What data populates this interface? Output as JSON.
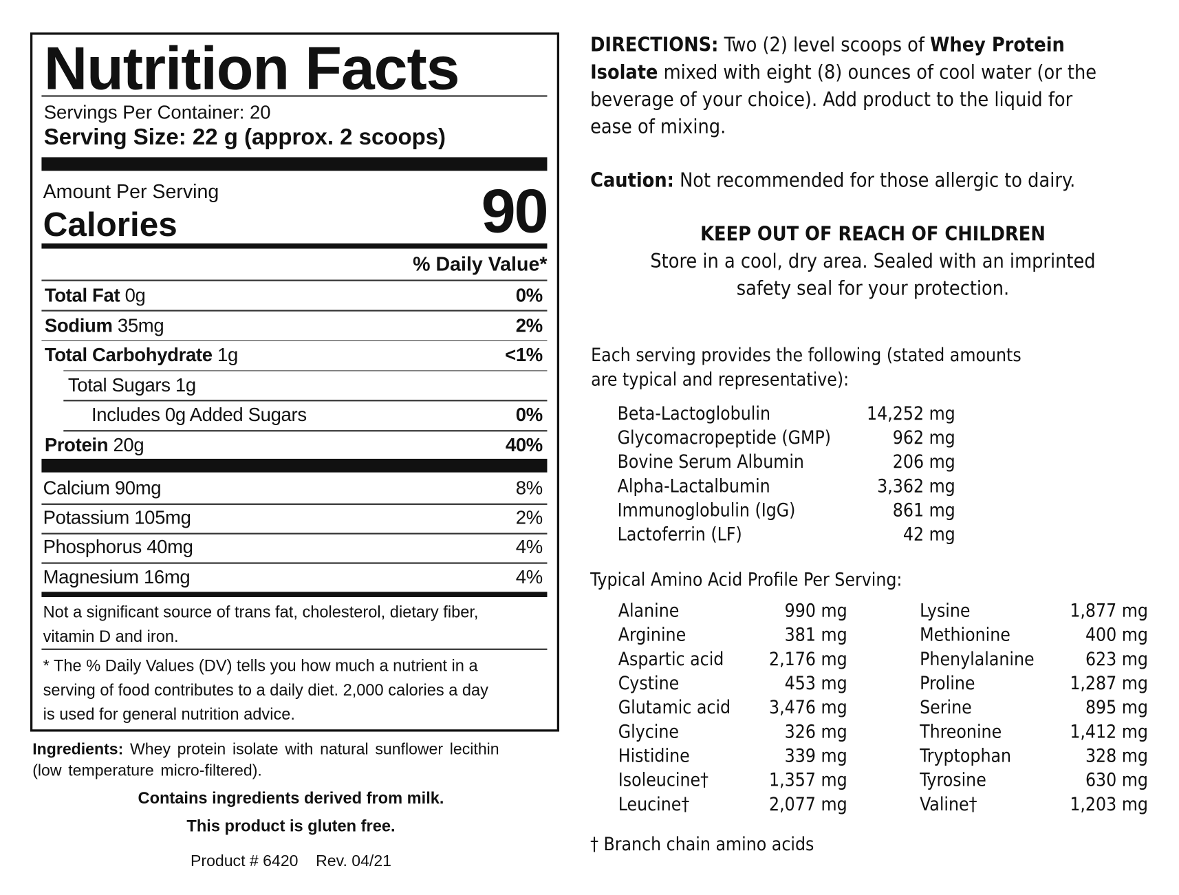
{
  "label": {
    "title": "Nutrition Facts",
    "servings_per_container": "Servings Per Container: 20",
    "serving_size": "Serving Size: 22 g (approx. 2 scoops)",
    "amount_per_serving": "Amount Per Serving",
    "calories_label": "Calories",
    "calories_value": "90",
    "daily_value_header": "% Daily Value*",
    "nutrients": [
      {
        "name": "Total Fat",
        "amount": "0g",
        "dv": "0%",
        "bold": true,
        "indent": 0
      },
      {
        "name": "Sodium",
        "amount": "35mg",
        "dv": "2%",
        "bold": true,
        "indent": 0
      },
      {
        "name": "Total Carbohydrate",
        "amount": "1g",
        "dv": "<1%",
        "bold": true,
        "indent": 0
      },
      {
        "name": "Total Sugars 1g",
        "amount": "",
        "dv": "",
        "bold": false,
        "indent": 1
      },
      {
        "name": "Includes 0g Added Sugars",
        "amount": "",
        "dv": "0%",
        "bold": false,
        "indent": 2
      },
      {
        "name": "Protein",
        "amount": "20g",
        "dv": "40%",
        "bold": true,
        "indent": 0
      }
    ],
    "minerals": [
      {
        "name": "Calcium 90mg",
        "dv": "8%"
      },
      {
        "name": "Potassium 105mg",
        "dv": "2%"
      },
      {
        "name": "Phosphorus 40mg",
        "dv": "4%"
      },
      {
        "name": "Magnesium 16mg",
        "dv": "4%"
      }
    ],
    "not_significant": [
      "Not a significant source of trans fat, cholesterol, dietary fiber,",
      "vitamin D and iron."
    ],
    "footnote": [
      "* The % Daily Values (DV) tells you how much a nutrient in a",
      "serving of food contributes to a daily diet. 2,000 calories a day",
      "is used for general nutrition advice."
    ]
  },
  "ingredients": {
    "label": "Ingredients:",
    "text1": " Whey protein isolate with natural sunflower lecithin",
    "text2": "(low temperature micro-filtered).",
    "allergen": "Contains ingredients derived from milk.",
    "gluten": "This product is gluten free.",
    "product": "Product # 6420    Rev. 04/21"
  },
  "directions": {
    "label": "DIRECTIONS:",
    "l1a": " Two (2) level scoops of ",
    "l1b": "Whey Protein",
    "l2a": "Isolate",
    "l2b": " mixed with eight (8) ounces of cool water (or the",
    "l3": "beverage of your choice). Add product to the liquid for",
    "l4": "ease of mixing.",
    "caution_label": "Caution:",
    "caution_text": " Not recommended for those allergic to dairy.",
    "keep_out": "KEEP OUT OF REACH OF CHILDREN",
    "store1": "Store in a cool, dry area. Sealed with an imprinted",
    "store2": "safety seal for your protection."
  },
  "fractions": {
    "intro1": "Each serving provides the following (stated amounts",
    "intro2": "are typical and representative):",
    "items": [
      {
        "name": "Beta-Lactoglobulin",
        "value": "14,252 mg"
      },
      {
        "name": "Glycomacropeptide (GMP)",
        "value": "962 mg"
      },
      {
        "name": "Bovine Serum Albumin",
        "value": "206 mg"
      },
      {
        "name": "Alpha-Lactalbumin",
        "value": "3,362 mg"
      },
      {
        "name": "Immunoglobulin (IgG)",
        "value": "861 mg"
      },
      {
        "name": "Lactoferrin (LF)",
        "value": "42 mg"
      }
    ]
  },
  "amino": {
    "title": "Typical Amino Acid Profile Per Serving:",
    "col1": [
      {
        "name": "Alanine",
        "value": "990 mg"
      },
      {
        "name": "Arginine",
        "value": "381 mg"
      },
      {
        "name": "Aspartic acid",
        "value": "2,176 mg"
      },
      {
        "name": "Cystine",
        "value": "453 mg"
      },
      {
        "name": "Glutamic acid",
        "value": "3,476 mg"
      },
      {
        "name": "Glycine",
        "value": "326 mg"
      },
      {
        "name": "Histidine",
        "value": "339 mg"
      },
      {
        "name": "Isoleucine†",
        "value": "1,357 mg"
      },
      {
        "name": "Leucine†",
        "value": "2,077 mg"
      }
    ],
    "col2": [
      {
        "name": "Lysine",
        "value": "1,877 mg"
      },
      {
        "name": "Methionine",
        "value": "400 mg"
      },
      {
        "name": "Phenylalanine",
        "value": "623 mg"
      },
      {
        "name": "Proline",
        "value": "1,287 mg"
      },
      {
        "name": "Serine",
        "value": "895 mg"
      },
      {
        "name": "Threonine",
        "value": "1,412 mg"
      },
      {
        "name": "Tryptophan",
        "value": "328 mg"
      },
      {
        "name": "Tyrosine",
        "value": "630 mg"
      },
      {
        "name": "Valine†",
        "value": "1,203 mg"
      }
    ],
    "footnote": "† Branch chain amino acids"
  }
}
